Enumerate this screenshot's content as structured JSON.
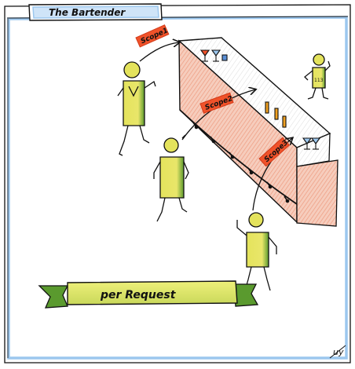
{
  "frame": {
    "title": "The Bartender"
  },
  "scopes": [
    "Scope1",
    "Scope2",
    "Scope3"
  ],
  "banner": {
    "text": "per Request"
  },
  "bartender": {
    "badge": "113"
  },
  "signature": "uy",
  "colors": {
    "frame_blue": "#9cc7ee",
    "person_yellow": "#e4e35c",
    "person_green": "#4f8a2a",
    "scope_red": "#f0522a",
    "bar_pink": "#f3b9a3",
    "ink": "#111111"
  }
}
